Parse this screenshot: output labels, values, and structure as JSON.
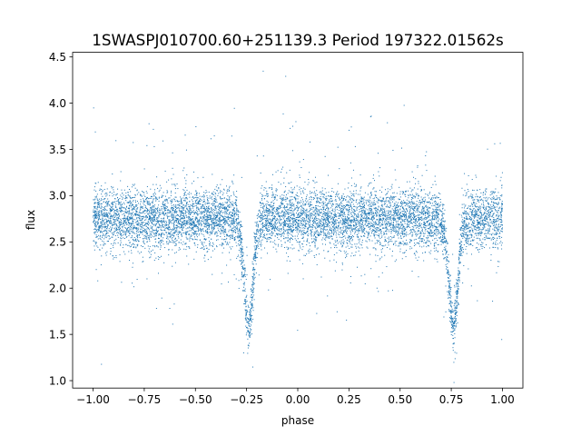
{
  "chart_data": {
    "type": "scatter",
    "title": "1SWASPJ010700.60+251139.3 Period 197322.01562s",
    "xlabel": "phase",
    "ylabel": "flux",
    "xlim": [
      -1.1,
      1.1
    ],
    "ylim": [
      0.92,
      4.55
    ],
    "xticks": [
      -1.0,
      -0.75,
      -0.5,
      -0.25,
      0.0,
      0.25,
      0.5,
      0.75,
      1.0
    ],
    "xtick_labels": [
      "−1.00",
      "−0.75",
      "−0.50",
      "−0.25",
      "0.00",
      "0.25",
      "0.50",
      "0.75",
      "1.00"
    ],
    "yticks": [
      1.0,
      1.5,
      2.0,
      2.5,
      3.0,
      3.5,
      4.0,
      4.5
    ],
    "ytick_labels": [
      "1.0",
      "1.5",
      "2.0",
      "2.5",
      "3.0",
      "3.5",
      "4.0",
      "4.5"
    ],
    "grid": false,
    "legend": "none",
    "marker_color": "#1f77b4",
    "x_range": [
      -1.0,
      1.0
    ],
    "baseline_flux": 2.75,
    "eclipses": [
      {
        "phase": -0.24,
        "min_flux": 1.6
      },
      {
        "phase": 0.76,
        "min_flux": 1.6
      }
    ]
  }
}
